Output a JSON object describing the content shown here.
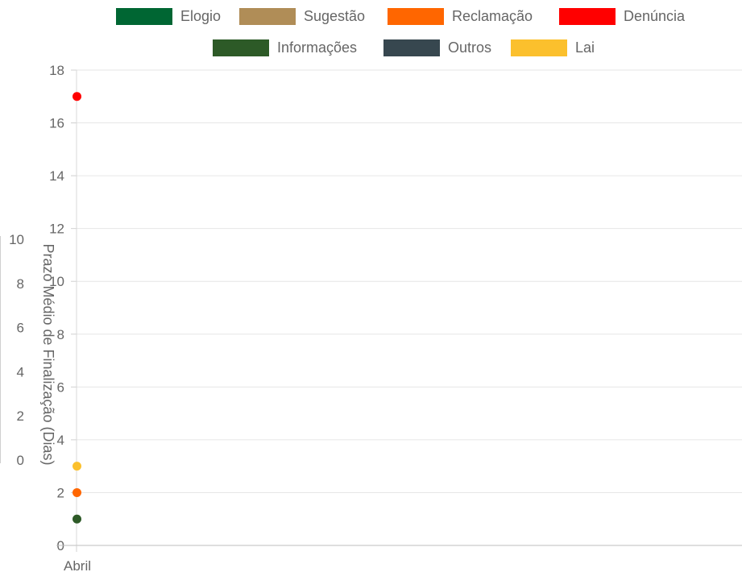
{
  "chart_data": {
    "type": "scatter",
    "categories": [
      "Abril"
    ],
    "ylim": [
      0,
      18
    ],
    "yticks": [
      0,
      2,
      4,
      6,
      8,
      10,
      12,
      14,
      16,
      18
    ],
    "grid": true,
    "legend_position": "top",
    "ylabel": "Prazo Médio de Finalização (Dias)",
    "series": [
      {
        "name": "Elogio",
        "color": "#006633",
        "values": [
          null
        ]
      },
      {
        "name": "Sugestão",
        "color": "#B08D57",
        "values": [
          null
        ]
      },
      {
        "name": "Reclamação",
        "color": "#FF6600",
        "values": [
          2
        ]
      },
      {
        "name": "Denúncia",
        "color": "#FF0000",
        "values": [
          17
        ]
      },
      {
        "name": "Informações",
        "color": "#2D5A27",
        "values": [
          1
        ]
      },
      {
        "name": "Outros",
        "color": "#37474F",
        "values": [
          null
        ]
      },
      {
        "name": "Lai",
        "color": "#FBC02D",
        "values": [
          3
        ]
      }
    ],
    "secondary_axis": {
      "ylim": [
        0,
        10
      ],
      "yticks": [
        0,
        2,
        4,
        6,
        8,
        10
      ]
    }
  }
}
